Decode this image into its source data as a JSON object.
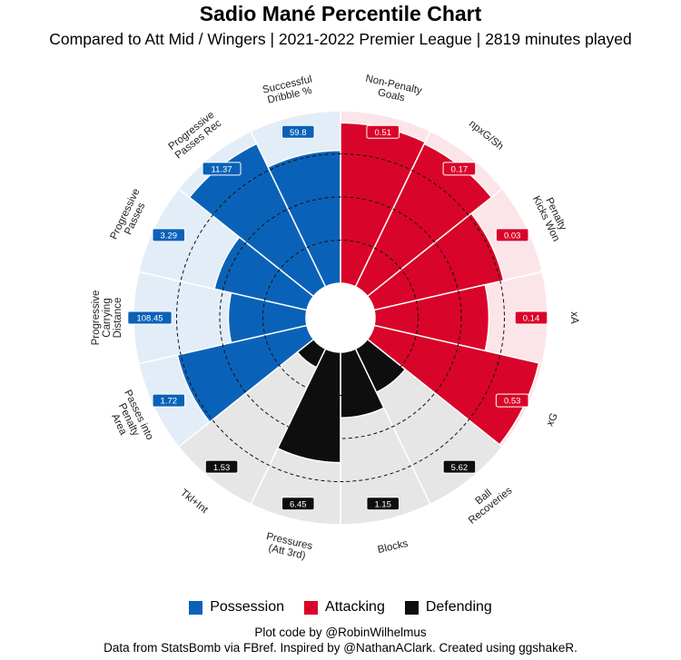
{
  "title": "Sadio Mané Percentile Chart",
  "subtitle": "Compared to Att Mid / Wingers  | 2021-2022 Premier League  | 2819 minutes played",
  "colors": {
    "Possession": "#0a62b8",
    "Attacking": "#d90429",
    "Defending": "#0e0e0e",
    "Possession_bg": "#e3edf7",
    "Attacking_bg": "#fbe5e9",
    "Defending_bg": "#e6e6e6"
  },
  "legend": [
    {
      "label": "Possession",
      "color": "#0a62b8"
    },
    {
      "label": "Attacking",
      "color": "#d90429"
    },
    {
      "label": "Defending",
      "color": "#0e0e0e"
    }
  ],
  "caption_line1": "Plot code by @RobinWilhelmus",
  "caption_line2": "Data from StatsBomb via FBref. Inspired by @NathanAClark. Created using ggshakeR.",
  "chart_data": {
    "type": "bar",
    "subtype": "polar-percentile",
    "ylim": [
      0,
      100
    ],
    "grid": true,
    "legend_position": "bottom",
    "categories": [
      "Non-Penalty Goals",
      "npxG/Sh",
      "Penalty Kicks Won",
      "xA",
      "xG",
      "Ball Recoveries",
      "Blocks",
      "Pressures (Att 3rd)",
      "Tkl+Int",
      "Passes into Penalty Area",
      "Progressive Carrying Distance",
      "Progressive Passes",
      "Progressive Passes Rec",
      "Successful Dribble %"
    ],
    "series": [
      {
        "name": "Attacking",
        "metrics": [
          {
            "label": "Non-Penalty Goals",
            "percentile": 93,
            "value": "0.51"
          },
          {
            "label": "npxG/Sh",
            "percentile": 92,
            "value": "0.17"
          },
          {
            "label": "Penalty Kicks Won",
            "percentile": 77,
            "value": "0.03"
          },
          {
            "label": "xA",
            "percentile": 66,
            "value": "0.14"
          },
          {
            "label": "xG",
            "percentile": 98,
            "value": "0.53"
          }
        ]
      },
      {
        "name": "Defending",
        "metrics": [
          {
            "label": "Ball Recoveries",
            "percentile": 28,
            "value": "5.62"
          },
          {
            "label": "Blocks",
            "percentile": 38,
            "value": "1.15"
          },
          {
            "label": "Pressures (Att 3rd)",
            "percentile": 64,
            "value": "6.45"
          },
          {
            "label": "Tkl+Int",
            "percentile": 12,
            "value": "1.53"
          }
        ]
      },
      {
        "name": "Possession",
        "metrics": [
          {
            "label": "Passes into Penalty Area",
            "percentile": 77,
            "value": "1.72"
          },
          {
            "label": "Progressive Carrying Distance",
            "percentile": 45,
            "value": "108.45"
          },
          {
            "label": "Progressive Passes",
            "percentile": 55,
            "value": "3.29"
          },
          {
            "label": "Progressive Passes Rec",
            "percentile": 92,
            "value": "11.37"
          },
          {
            "label": "Successful Dribble %",
            "percentile": 77,
            "value": "59.8"
          }
        ]
      }
    ]
  }
}
